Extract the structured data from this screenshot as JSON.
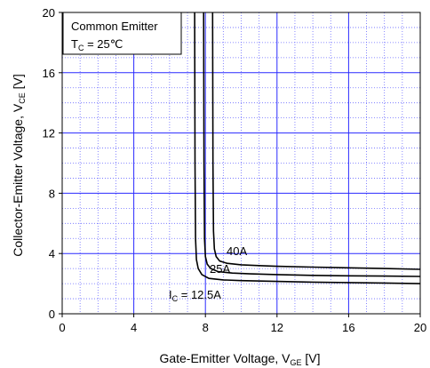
{
  "chart_data": {
    "type": "line",
    "xlabel": {
      "main": "Gate-Emitter Voltage, V",
      "sub": "GE",
      "unit": " [V]"
    },
    "ylabel": {
      "main": "Collector-Emitter Voltage, V",
      "sub": "CE",
      "unit": " [V]"
    },
    "xlim": [
      0,
      20
    ],
    "ylim": [
      0,
      20
    ],
    "xticks": [
      0,
      4,
      8,
      12,
      16,
      20
    ],
    "yticks": [
      0,
      4,
      8,
      12,
      16,
      20
    ],
    "grid": true,
    "legend_box": {
      "line1": "Common Emitter",
      "line2_main": "T",
      "line2_sub": "C",
      "line2_rest": " = 25℃"
    },
    "series": [
      {
        "name": "12.5A",
        "label_main": "I",
        "label_sub": "C",
        "label_rest": " = 12.5A",
        "x": [
          7.4,
          7.42,
          7.45,
          7.5,
          7.6,
          7.8,
          8.2,
          9.0,
          10.0,
          12.0,
          14.0,
          16.0,
          18.0,
          20.0
        ],
        "y": [
          20,
          10,
          5,
          3.6,
          3.0,
          2.6,
          2.35,
          2.25,
          2.2,
          2.15,
          2.1,
          2.07,
          2.04,
          2.0
        ]
      },
      {
        "name": "25A",
        "label_main": "25A",
        "x": [
          7.9,
          7.92,
          7.95,
          8.0,
          8.1,
          8.3,
          8.7,
          9.5,
          10.5,
          12.0,
          14.0,
          16.0,
          18.0,
          20.0
        ],
        "y": [
          20,
          10,
          5,
          3.8,
          3.3,
          3.0,
          2.8,
          2.7,
          2.65,
          2.6,
          2.55,
          2.52,
          2.5,
          2.48
        ]
      },
      {
        "name": "40A",
        "label_main": "40A",
        "x": [
          8.4,
          8.42,
          8.45,
          8.5,
          8.6,
          8.8,
          9.2,
          10.0,
          11.0,
          12.0,
          14.0,
          16.0,
          18.0,
          20.0
        ],
        "y": [
          20,
          10,
          5.5,
          4.3,
          3.8,
          3.5,
          3.35,
          3.25,
          3.2,
          3.15,
          3.1,
          3.05,
          3.0,
          2.95
        ]
      }
    ]
  }
}
